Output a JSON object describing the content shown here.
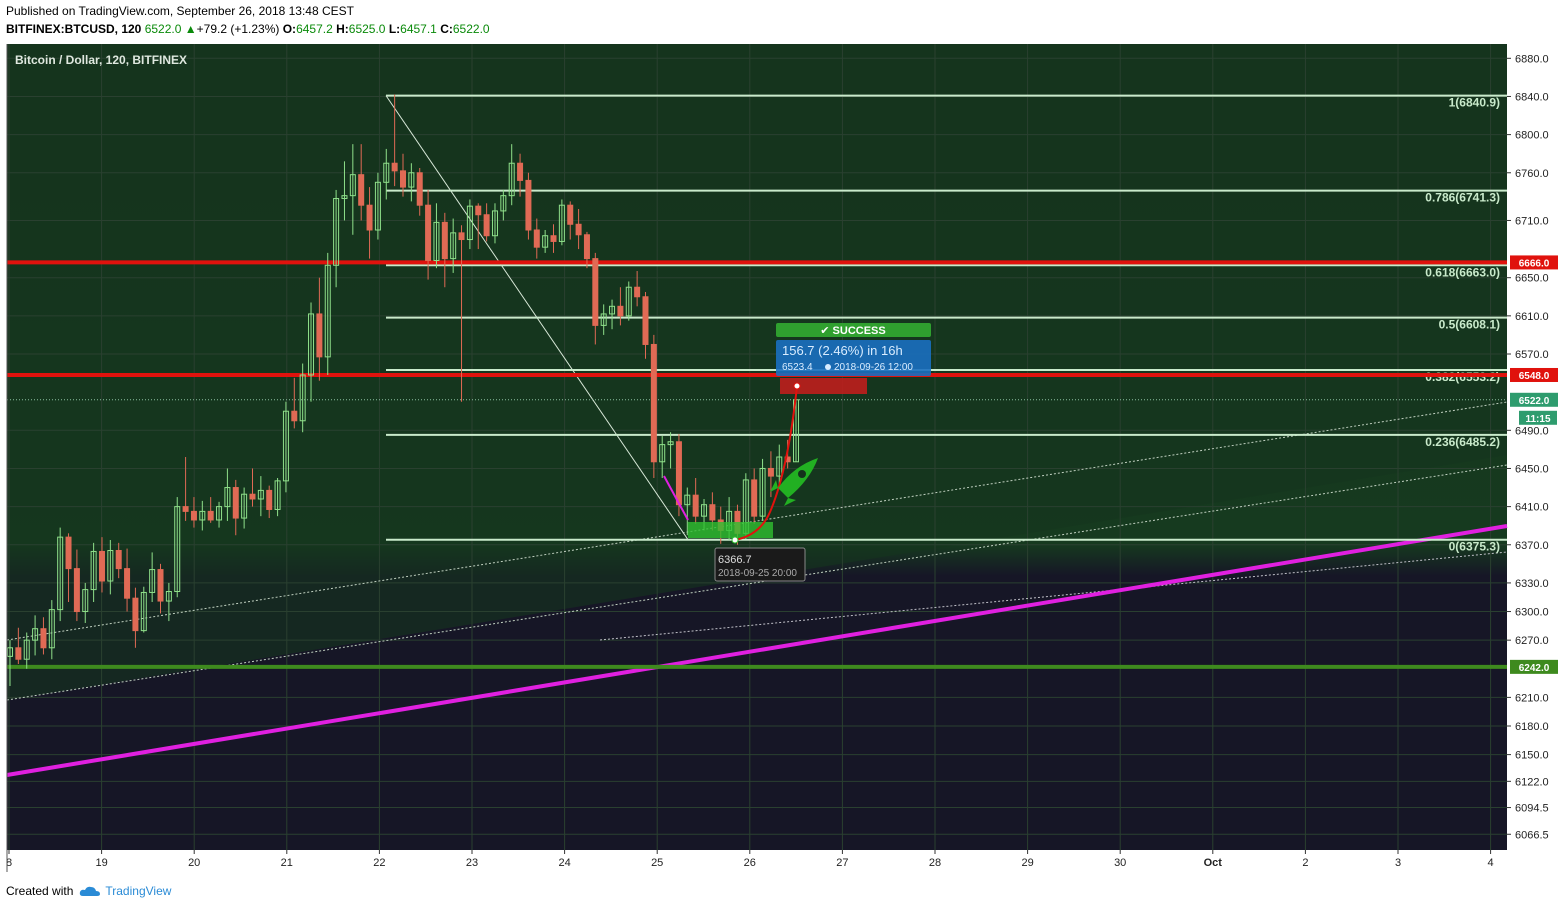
{
  "header": {
    "published": "Published on TradingView.com, September 26, 2018 13:48 CEST",
    "symbol": "BITFINEX:BTCUSD, 120",
    "last": "6522.0",
    "change": "+79.2 (+1.23%)",
    "o_label": "O:",
    "o": "6457.2",
    "h_label": "H:",
    "h": "6525.0",
    "l_label": "L:",
    "l": "6457.1",
    "c_label": "C:",
    "c": "6522.0"
  },
  "footer": {
    "created_with": "Created with",
    "brand": "TradingView"
  },
  "colors": {
    "background_top": "#14321c",
    "background_bottom": "#161626",
    "fib": "#c9eacb",
    "red": "#e0120d",
    "magenta": "#e020e0",
    "green": "#3e8a1e"
  },
  "chart_data": {
    "type": "candlestick",
    "title": "Bitcoin / Dollar, 120, BITFINEX",
    "y_ticks": [
      6880.0,
      6840.0,
      6800.0,
      6760.0,
      6710.0,
      6650.0,
      6610.0,
      6570.0,
      6490.0,
      6450.0,
      6410.0,
      6370.0,
      6330.0,
      6300.0,
      6270.0,
      6210.0,
      6180.0,
      6150.0,
      6122.0,
      6094.5,
      6066.5
    ],
    "x_ticks": [
      "8",
      "19",
      "20",
      "21",
      "22",
      "23",
      "24",
      "25",
      "26",
      "27",
      "28",
      "29",
      "30",
      "Oct",
      "2",
      "3",
      "4"
    ],
    "ylim": [
      6050,
      6895
    ],
    "candles": [
      [
        6253,
        6270,
        6222,
        6262
      ],
      [
        6262,
        6283,
        6245,
        6250
      ],
      [
        6250,
        6278,
        6240,
        6270
      ],
      [
        6270,
        6296,
        6254,
        6282
      ],
      [
        6282,
        6294,
        6255,
        6262
      ],
      [
        6262,
        6312,
        6250,
        6302
      ],
      [
        6302,
        6388,
        6290,
        6378
      ],
      [
        6378,
        6382,
        6310,
        6345
      ],
      [
        6345,
        6365,
        6290,
        6300
      ],
      [
        6300,
        6330,
        6288,
        6323
      ],
      [
        6323,
        6372,
        6310,
        6363
      ],
      [
        6363,
        6378,
        6320,
        6332
      ],
      [
        6332,
        6375,
        6318,
        6364
      ],
      [
        6364,
        6372,
        6335,
        6345
      ],
      [
        6345,
        6366,
        6300,
        6314
      ],
      [
        6314,
        6325,
        6262,
        6280
      ],
      [
        6280,
        6326,
        6278,
        6320
      ],
      [
        6320,
        6362,
        6310,
        6344
      ],
      [
        6344,
        6350,
        6298,
        6311
      ],
      [
        6311,
        6330,
        6290,
        6321
      ],
      [
        6321,
        6420,
        6315,
        6410
      ],
      [
        6410,
        6462,
        6395,
        6405
      ],
      [
        6405,
        6420,
        6388,
        6396
      ],
      [
        6396,
        6416,
        6385,
        6405
      ],
      [
        6405,
        6420,
        6393,
        6396
      ],
      [
        6396,
        6415,
        6388,
        6410
      ],
      [
        6410,
        6450,
        6395,
        6430
      ],
      [
        6430,
        6438,
        6380,
        6398
      ],
      [
        6398,
        6430,
        6387,
        6423
      ],
      [
        6423,
        6450,
        6410,
        6418
      ],
      [
        6418,
        6442,
        6400,
        6427
      ],
      [
        6427,
        6432,
        6398,
        6407
      ],
      [
        6407,
        6440,
        6400,
        6437
      ],
      [
        6437,
        6520,
        6425,
        6510
      ],
      [
        6510,
        6545,
        6492,
        6500
      ],
      [
        6500,
        6560,
        6488,
        6548
      ],
      [
        6548,
        6624,
        6520,
        6612
      ],
      [
        6612,
        6650,
        6542,
        6567
      ],
      [
        6567,
        6676,
        6548,
        6663
      ],
      [
        6663,
        6742,
        6640,
        6733
      ],
      [
        6733,
        6772,
        6710,
        6736
      ],
      [
        6736,
        6790,
        6695,
        6758
      ],
      [
        6758,
        6790,
        6710,
        6726
      ],
      [
        6726,
        6745,
        6670,
        6700
      ],
      [
        6700,
        6760,
        6690,
        6750
      ],
      [
        6750,
        6785,
        6732,
        6770
      ],
      [
        6770,
        6842,
        6746,
        6762
      ],
      [
        6762,
        6780,
        6735,
        6745
      ],
      [
        6745,
        6770,
        6730,
        6760
      ],
      [
        6760,
        6765,
        6715,
        6726
      ],
      [
        6726,
        6742,
        6648,
        6668
      ],
      [
        6668,
        6728,
        6660,
        6708
      ],
      [
        6708,
        6718,
        6640,
        6670
      ],
      [
        6670,
        6712,
        6655,
        6697
      ],
      [
        6697,
        6705,
        6520,
        6690
      ],
      [
        6690,
        6732,
        6680,
        6725
      ],
      [
        6725,
        6728,
        6680,
        6716
      ],
      [
        6716,
        6728,
        6688,
        6694
      ],
      [
        6694,
        6728,
        6686,
        6720
      ],
      [
        6720,
        6742,
        6710,
        6736
      ],
      [
        6736,
        6790,
        6726,
        6770
      ],
      [
        6770,
        6780,
        6735,
        6752
      ],
      [
        6752,
        6760,
        6690,
        6700
      ],
      [
        6700,
        6712,
        6670,
        6682
      ],
      [
        6682,
        6700,
        6676,
        6694
      ],
      [
        6694,
        6706,
        6676,
        6688
      ],
      [
        6688,
        6732,
        6684,
        6726
      ],
      [
        6726,
        6730,
        6690,
        6706
      ],
      [
        6706,
        6722,
        6680,
        6695
      ],
      [
        6695,
        6698,
        6660,
        6670
      ],
      [
        6670,
        6676,
        6580,
        6600
      ],
      [
        6600,
        6622,
        6590,
        6612
      ],
      [
        6612,
        6627,
        6596,
        6620
      ],
      [
        6620,
        6640,
        6600,
        6610
      ],
      [
        6610,
        6646,
        6605,
        6640
      ],
      [
        6640,
        6657,
        6620,
        6630
      ],
      [
        6630,
        6635,
        6565,
        6580
      ],
      [
        6580,
        6590,
        6440,
        6457
      ],
      [
        6457,
        6484,
        6440,
        6475
      ],
      [
        6475,
        6488,
        6450,
        6478
      ],
      [
        6478,
        6486,
        6400,
        6412
      ],
      [
        6412,
        6430,
        6380,
        6422
      ],
      [
        6422,
        6440,
        6392,
        6400
      ],
      [
        6400,
        6418,
        6385,
        6412
      ],
      [
        6412,
        6425,
        6385,
        6396
      ],
      [
        6396,
        6410,
        6371,
        6385
      ],
      [
        6385,
        6420,
        6375,
        6405
      ],
      [
        6405,
        6412,
        6370,
        6382
      ],
      [
        6382,
        6445,
        6376,
        6438
      ],
      [
        6438,
        6450,
        6392,
        6400
      ],
      [
        6400,
        6460,
        6395,
        6450
      ],
      [
        6450,
        6468,
        6420,
        6442
      ],
      [
        6442,
        6475,
        6430,
        6462
      ],
      [
        6462,
        6480,
        6450,
        6457
      ],
      [
        6457,
        6525,
        6457,
        6522
      ]
    ],
    "fib_levels": [
      {
        "ratio": "1",
        "value": 6840.9
      },
      {
        "ratio": "0.786",
        "value": 6741.3
      },
      {
        "ratio": "0.618",
        "value": 6663.0
      },
      {
        "ratio": "0.5",
        "value": 6608.1
      },
      {
        "ratio": "0.382",
        "value": 6553.2
      },
      {
        "ratio": "0.236",
        "value": 6485.2
      },
      {
        "ratio": "0",
        "value": 6375.3
      }
    ],
    "horizontal_lines": [
      {
        "value": 6666.0,
        "label": "6666.0",
        "color": "#e0120d"
      },
      {
        "value": 6548.0,
        "label": "6548.0",
        "color": "#e0120d"
      },
      {
        "value": 6242.0,
        "label": "6242.0",
        "color": "#3e8a1e"
      }
    ],
    "last_price": {
      "value": 6522.0,
      "label": "6522.0",
      "countdown": "11:15"
    },
    "success_badge": "SUCCESS",
    "measure": {
      "text": "156.7 (2.46%) in 16h",
      "price": "6523.4",
      "date": "2018-09-26  12:00"
    },
    "low_marker": {
      "price": "6366.7",
      "date": "2018-09-25 20:00"
    }
  }
}
